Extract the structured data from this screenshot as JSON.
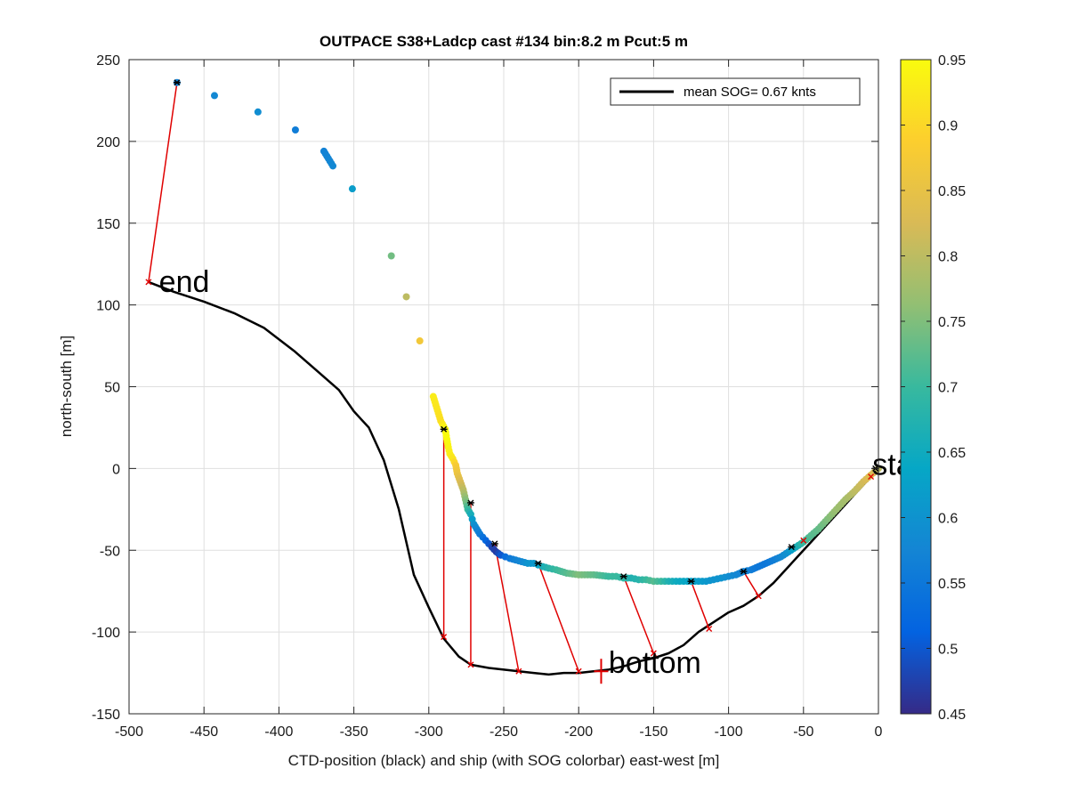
{
  "chart_data": {
    "type": "scatter",
    "title": "OUTPACE S38+Ladcp cast #134 bin:8.2 m  Pcut:5 m",
    "xlabel": "CTD-position (black) and ship (with SOG colorbar) east-west [m]",
    "ylabel": "north-south [m]",
    "xlim": [
      -500,
      0
    ],
    "ylim": [
      -150,
      250
    ],
    "xticks": [
      -500,
      -450,
      -400,
      -350,
      -300,
      -250,
      -200,
      -150,
      -100,
      -50,
      0
    ],
    "yticks": [
      -150,
      -100,
      -50,
      0,
      50,
      100,
      150,
      200,
      250
    ],
    "grid": true,
    "legend": {
      "position": "top-right",
      "entries": [
        "mean SOG=  0.67 knts"
      ],
      "colors": [
        "#000000"
      ]
    },
    "colorbar": {
      "range": [
        0.45,
        0.95
      ],
      "ticks": [
        "0.45",
        "0.5",
        "0.55",
        "0.6",
        "0.65",
        "0.7",
        "0.75",
        "0.8",
        "0.85",
        "0.9",
        "0.95"
      ],
      "colormap": [
        "#352a87",
        "#0363e1",
        "#1485d4",
        "#06a7c6",
        "#38b99e",
        "#92bf73",
        "#d9ba56",
        "#fcce2e",
        "#f9fb0e"
      ]
    },
    "annotations": [
      {
        "text": "end",
        "x": -480,
        "y": 108
      },
      {
        "text": "start",
        "x": -4,
        "y": -4
      },
      {
        "text": "bottom",
        "x": -180,
        "y": -125
      }
    ],
    "ctd_track": {
      "name": "CTD-position",
      "x": [
        0,
        -5,
        -15,
        -25,
        -35,
        -45,
        -55,
        -60,
        -70,
        -80,
        -90,
        -100,
        -110,
        -120,
        -130,
        -140,
        -150,
        -160,
        -170,
        -180,
        -190,
        -200,
        -210,
        -220,
        -230,
        -240,
        -250,
        -260,
        -272,
        -280,
        -290,
        -300,
        -310,
        -320,
        -330,
        -340,
        -345,
        -350,
        -360,
        -375,
        -390,
        -410,
        -430,
        -450,
        -470,
        -487
      ],
      "y": [
        0,
        -5,
        -15,
        -25,
        -35,
        -45,
        -55,
        -60,
        -70,
        -78,
        -84,
        -88,
        -94,
        -100,
        -108,
        -113,
        -116,
        -118,
        -121,
        -123,
        -124,
        -125,
        -125,
        -126,
        -125,
        -124,
        -123,
        -122,
        -120,
        -115,
        -104,
        -85,
        -65,
        -25,
        5,
        25,
        30,
        35,
        48,
        60,
        72,
        86,
        95,
        102,
        108,
        114
      ]
    },
    "ship_track": {
      "name": "ship",
      "x": [
        -468,
        -443,
        -414,
        -389,
        -370,
        -364,
        -351,
        -325,
        -315,
        -306,
        -297,
        -292,
        -289,
        -288,
        -287,
        -286,
        -284,
        -282,
        -281,
        -279,
        -277,
        -276,
        -275,
        -274,
        -272,
        -271,
        -270,
        -268,
        -266,
        -264,
        -262,
        -260,
        -258,
        -255,
        -252,
        -249,
        -246,
        -242,
        -238,
        -234,
        -230,
        -227,
        -224,
        -220,
        -215,
        -208,
        -200,
        -190,
        -180,
        -175,
        -170,
        -165,
        -160,
        -155,
        -150,
        -145,
        -140,
        -135,
        -130,
        -125,
        -120,
        -115,
        -110,
        -105,
        -100,
        -95,
        -90,
        -85,
        -80,
        -75,
        -70,
        -65,
        -60,
        -55,
        -50,
        -45,
        -40,
        -34,
        -28,
        -22,
        -16,
        -10,
        -5,
        0
      ],
      "y": [
        236,
        228,
        218,
        207,
        194,
        185,
        171,
        130,
        105,
        78,
        44,
        29,
        24,
        18,
        13,
        9,
        6,
        2,
        -3,
        -8,
        -13,
        -17,
        -21,
        -25,
        -28,
        -31,
        -34,
        -37,
        -40,
        -42,
        -44,
        -46,
        -48,
        -51,
        -53,
        -54,
        -55,
        -56,
        -57,
        -58,
        -58,
        -59,
        -60,
        -61,
        -62,
        -64,
        -65,
        -65,
        -66,
        -66,
        -67,
        -67,
        -68,
        -68,
        -69,
        -69,
        -69,
        -69,
        -69,
        -69,
        -69,
        -69,
        -68,
        -67,
        -66,
        -65,
        -63,
        -62,
        -60,
        -58,
        -56,
        -54,
        -51,
        -48,
        -45,
        -41,
        -37,
        -31,
        -25,
        -19,
        -14,
        -8,
        -4,
        0
      ],
      "sog": [
        0.57,
        0.58,
        0.59,
        0.56,
        0.57,
        0.58,
        0.62,
        0.74,
        0.8,
        0.87,
        0.93,
        0.91,
        0.95,
        0.95,
        0.94,
        0.93,
        0.92,
        0.88,
        0.86,
        0.83,
        0.8,
        0.77,
        0.74,
        0.7,
        0.66,
        0.62,
        0.6,
        0.58,
        0.56,
        0.54,
        0.52,
        0.5,
        0.48,
        0.47,
        0.5,
        0.53,
        0.55,
        0.57,
        0.58,
        0.6,
        0.61,
        0.63,
        0.66,
        0.68,
        0.7,
        0.72,
        0.75,
        0.73,
        0.7,
        0.7,
        0.69,
        0.67,
        0.68,
        0.7,
        0.72,
        0.7,
        0.67,
        0.65,
        0.64,
        0.63,
        0.62,
        0.61,
        0.6,
        0.6,
        0.59,
        0.58,
        0.57,
        0.56,
        0.55,
        0.55,
        0.56,
        0.58,
        0.6,
        0.65,
        0.7,
        0.72,
        0.73,
        0.75,
        0.77,
        0.78,
        0.8,
        0.82,
        0.84,
        0.8
      ]
    },
    "links": [
      {
        "ship": [
          -468,
          236
        ],
        "ctd": [
          -487,
          114
        ]
      },
      {
        "ship": [
          -290,
          24
        ],
        "ctd": [
          -290,
          -103
        ]
      },
      {
        "ship": [
          -272,
          -21
        ],
        "ctd": [
          -272,
          -120
        ]
      },
      {
        "ship": [
          -256,
          -46
        ],
        "ctd": [
          -240,
          -124
        ]
      },
      {
        "ship": [
          -227,
          -58
        ],
        "ctd": [
          -200,
          -124
        ]
      },
      {
        "ship": [
          -170,
          -66
        ],
        "ctd": [
          -150,
          -113
        ]
      },
      {
        "ship": [
          -125,
          -69
        ],
        "ctd": [
          -113,
          -98
        ]
      },
      {
        "ship": [
          -90,
          -63
        ],
        "ctd": [
          -80,
          -78
        ]
      },
      {
        "ship": [
          -58,
          -48
        ],
        "ctd": [
          -50,
          -44
        ]
      },
      {
        "ship": [
          -2,
          0
        ],
        "ctd": [
          -5,
          -5
        ]
      }
    ]
  }
}
